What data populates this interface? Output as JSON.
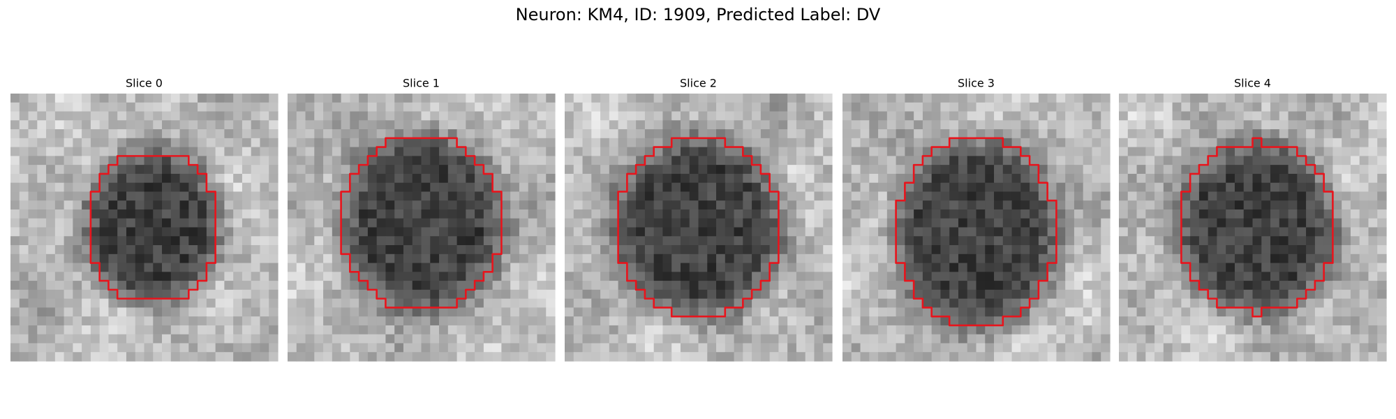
{
  "figure": {
    "title": "Neuron: KM4, ID: 1909, Predicted Label: DV",
    "panels": [
      {
        "title": "Slice 0"
      },
      {
        "title": "Slice 1"
      },
      {
        "title": "Slice 2"
      },
      {
        "title": "Slice 3"
      },
      {
        "title": "Slice 4"
      }
    ]
  }
}
